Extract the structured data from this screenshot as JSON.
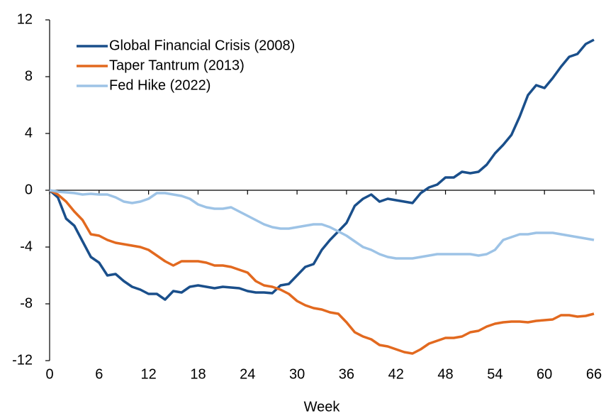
{
  "chart_data": {
    "type": "line",
    "x_label": "Week",
    "x": [
      0,
      1,
      2,
      3,
      4,
      5,
      6,
      7,
      8,
      9,
      10,
      11,
      12,
      13,
      14,
      15,
      16,
      17,
      18,
      19,
      20,
      21,
      22,
      23,
      24,
      25,
      26,
      27,
      28,
      29,
      30,
      31,
      32,
      33,
      34,
      35,
      36,
      37,
      38,
      39,
      40,
      41,
      42,
      43,
      44,
      45,
      46,
      47,
      48,
      49,
      50,
      51,
      52,
      53,
      54,
      55,
      56,
      57,
      58,
      59,
      60,
      61,
      62,
      63,
      64,
      65,
      66
    ],
    "series": [
      {
        "name": "Global Financial Crisis (2008)",
        "color": "#1a4f8b",
        "values": [
          0,
          -0.5,
          -2.0,
          -2.5,
          -3.6,
          -4.7,
          -5.1,
          -6.0,
          -5.9,
          -6.4,
          -6.8,
          -7.0,
          -7.3,
          -7.3,
          -7.7,
          -7.1,
          -7.2,
          -6.8,
          -6.7,
          -6.8,
          -6.9,
          -6.8,
          -6.85,
          -6.9,
          -7.1,
          -7.2,
          -7.2,
          -7.25,
          -6.7,
          -6.6,
          -6.0,
          -5.4,
          -5.2,
          -4.2,
          -3.5,
          -2.9,
          -2.3,
          -1.1,
          -0.6,
          -0.3,
          -0.8,
          -0.6,
          -0.7,
          -0.8,
          -0.9,
          -0.2,
          0.2,
          0.4,
          0.9,
          0.9,
          1.3,
          1.2,
          1.3,
          1.8,
          2.6,
          3.2,
          3.9,
          5.2,
          6.7,
          7.4,
          7.2,
          7.9,
          8.7,
          9.4,
          9.6,
          10.3,
          10.6
        ]
      },
      {
        "name": "Taper Tantrum (2013)",
        "color": "#e2691f",
        "values": [
          0,
          -0.3,
          -0.8,
          -1.5,
          -2.1,
          -3.1,
          -3.2,
          -3.5,
          -3.7,
          -3.8,
          -3.9,
          -4.0,
          -4.2,
          -4.6,
          -5.0,
          -5.3,
          -5.0,
          -5.0,
          -5.0,
          -5.1,
          -5.3,
          -5.3,
          -5.4,
          -5.6,
          -5.8,
          -6.4,
          -6.7,
          -6.8,
          -7.0,
          -7.3,
          -7.8,
          -8.1,
          -8.3,
          -8.4,
          -8.6,
          -8.7,
          -9.3,
          -10.0,
          -10.3,
          -10.5,
          -10.9,
          -11.0,
          -11.2,
          -11.4,
          -11.5,
          -11.2,
          -10.8,
          -10.6,
          -10.4,
          -10.4,
          -10.3,
          -10.0,
          -9.9,
          -9.6,
          -9.4,
          -9.3,
          -9.25,
          -9.25,
          -9.3,
          -9.2,
          -9.15,
          -9.1,
          -8.8,
          -8.8,
          -8.9,
          -8.85,
          -8.7
        ]
      },
      {
        "name": "Fed Hike (2022)",
        "color": "#9dc3e6",
        "values": [
          0,
          -0.1,
          -0.15,
          -0.2,
          -0.3,
          -0.25,
          -0.3,
          -0.3,
          -0.5,
          -0.8,
          -0.9,
          -0.8,
          -0.6,
          -0.2,
          -0.2,
          -0.3,
          -0.4,
          -0.6,
          -1.0,
          -1.2,
          -1.3,
          -1.3,
          -1.2,
          -1.5,
          -1.8,
          -2.1,
          -2.4,
          -2.6,
          -2.7,
          -2.7,
          -2.6,
          -2.5,
          -2.4,
          -2.4,
          -2.6,
          -2.9,
          -3.2,
          -3.6,
          -4.0,
          -4.2,
          -4.5,
          -4.7,
          -4.8,
          -4.8,
          -4.8,
          -4.7,
          -4.6,
          -4.5,
          -4.5,
          -4.5,
          -4.5,
          -4.5,
          -4.6,
          -4.5,
          -4.2,
          -3.5,
          -3.3,
          -3.1,
          -3.1,
          -3.0,
          -3.0,
          -3.0,
          -3.1,
          -3.2,
          -3.3,
          -3.4,
          -3.5
        ]
      }
    ],
    "xlim": [
      0,
      66
    ],
    "xticks": [
      0,
      6,
      12,
      18,
      24,
      30,
      36,
      42,
      48,
      54,
      60,
      66
    ],
    "ylim": [
      -12,
      12
    ],
    "yticks": [
      -12,
      -8,
      -4,
      0,
      4,
      8,
      12
    ],
    "legend": "upper left",
    "grid": false
  }
}
